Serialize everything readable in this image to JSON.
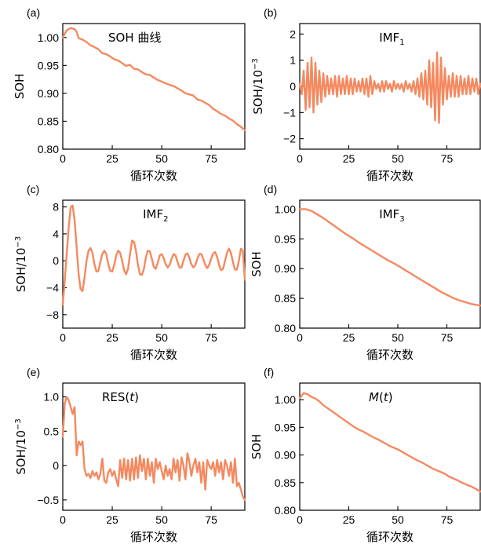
{
  "figure": {
    "line_color": "#F4895F",
    "x_axis_common_label": "循环次数"
  },
  "chart_data": [
    {
      "id": "a",
      "panel_label": "(a)",
      "type": "line",
      "annotation": "SOH 曲线",
      "annotation_italic_t": false,
      "ylabel": "SOH",
      "ylabel_sup": "",
      "xlabel": "循环次数",
      "xlim": [
        0,
        92
      ],
      "ylim": [
        0.8,
        1.025
      ],
      "xticks": [
        0,
        25,
        50,
        75
      ],
      "xtick_labels": [
        "0",
        "25",
        "50",
        "75"
      ],
      "yticks": [
        0.8,
        0.85,
        0.9,
        0.95,
        1.0
      ],
      "ytick_labels": [
        "0.80",
        "0.85",
        "0.90",
        "0.95",
        "1.00"
      ],
      "series": [
        {
          "x": [
            0,
            2,
            4,
            6,
            7,
            8,
            10,
            12,
            14,
            16,
            18,
            20,
            22,
            24,
            26,
            28,
            30,
            32,
            34,
            36,
            38,
            40,
            42,
            44,
            46,
            48,
            50,
            52,
            54,
            56,
            58,
            60,
            62,
            64,
            66,
            68,
            70,
            72,
            74,
            76,
            78,
            80,
            82,
            84,
            86,
            88,
            90,
            92
          ],
          "y": [
            1.0,
            1.013,
            1.017,
            1.015,
            1.01,
            0.999,
            0.996,
            0.992,
            0.986,
            0.983,
            0.979,
            0.972,
            0.97,
            0.966,
            0.961,
            0.959,
            0.954,
            0.949,
            0.951,
            0.944,
            0.943,
            0.938,
            0.934,
            0.933,
            0.928,
            0.924,
            0.921,
            0.918,
            0.915,
            0.913,
            0.909,
            0.905,
            0.9,
            0.898,
            0.896,
            0.889,
            0.887,
            0.883,
            0.879,
            0.872,
            0.868,
            0.863,
            0.86,
            0.855,
            0.851,
            0.845,
            0.84,
            0.834
          ]
        }
      ]
    },
    {
      "id": "b",
      "panel_label": "(b)",
      "type": "line",
      "annotation": "IMF",
      "annotation_sub": "1",
      "annotation_italic_t": false,
      "ylabel": "SOH/10",
      "ylabel_sup": "−3",
      "xlabel": "循环次数",
      "xlim": [
        0,
        92
      ],
      "ylim": [
        -2.4,
        2.4
      ],
      "xticks": [
        0,
        25,
        50,
        75
      ],
      "xtick_labels": [
        "0",
        "25",
        "50",
        "75"
      ],
      "yticks": [
        -2,
        -1,
        0,
        1,
        2
      ],
      "ytick_labels": [
        "−2",
        "−1",
        "0",
        "1",
        "2"
      ],
      "series": [
        {
          "x": [
            0,
            1,
            2,
            3,
            4,
            5,
            6,
            7,
            8,
            9,
            10,
            11,
            12,
            13,
            14,
            15,
            16,
            17,
            18,
            19,
            20,
            21,
            22,
            23,
            24,
            25,
            26,
            27,
            28,
            29,
            30,
            31,
            32,
            33,
            34,
            35,
            36,
            37,
            38,
            39,
            40,
            41,
            42,
            43,
            44,
            45,
            46,
            47,
            48,
            49,
            50,
            51,
            52,
            53,
            54,
            55,
            56,
            57,
            58,
            59,
            60,
            61,
            62,
            63,
            64,
            65,
            66,
            67,
            68,
            69,
            70,
            71,
            72,
            73,
            74,
            75,
            76,
            77,
            78,
            79,
            80,
            81,
            82,
            83,
            84,
            85,
            86,
            87,
            88,
            89,
            90,
            91,
            92
          ],
          "y": [
            0.1,
            -0.3,
            0.6,
            -0.9,
            0.9,
            -0.8,
            1.1,
            -1.0,
            0.9,
            -0.7,
            0.6,
            -0.6,
            0.5,
            -0.4,
            0.4,
            -0.3,
            0.3,
            -0.3,
            0.4,
            -0.4,
            0.4,
            -0.3,
            0.3,
            -0.3,
            0.4,
            -0.3,
            0.3,
            -0.3,
            0.3,
            -0.2,
            0.2,
            -0.2,
            0.3,
            -0.3,
            0.3,
            -0.4,
            0.4,
            -0.3,
            0.2,
            -0.1,
            0.1,
            -0.2,
            0.2,
            -0.2,
            0.2,
            -0.1,
            0.1,
            -0.2,
            0.2,
            -0.1,
            0.1,
            -0.1,
            0.1,
            -0.2,
            0.2,
            -0.1,
            0.1,
            -0.2,
            0.2,
            -0.3,
            0.3,
            -0.4,
            0.5,
            -0.5,
            0.6,
            -0.7,
            1.0,
            -0.8,
            0.9,
            -1.3,
            1.3,
            -1.4,
            1.1,
            -0.7,
            0.7,
            -0.5,
            0.4,
            -0.4,
            0.5,
            -0.4,
            0.4,
            -0.4,
            0.4,
            -0.3,
            0.3,
            -0.3,
            0.4,
            -0.3,
            0.3,
            -0.2,
            0.3,
            -0.3,
            0.1
          ]
        }
      ]
    },
    {
      "id": "c",
      "panel_label": "(c)",
      "type": "line",
      "annotation": "IMF",
      "annotation_sub": "2",
      "annotation_italic_t": false,
      "ylabel": "SOH/10",
      "ylabel_sup": "−3",
      "xlabel": "循环次数",
      "xlim": [
        0,
        92
      ],
      "ylim": [
        -10,
        9
      ],
      "xticks": [
        0,
        25,
        50,
        75
      ],
      "xtick_labels": [
        "0",
        "25",
        "50",
        "75"
      ],
      "yticks": [
        -8,
        -4,
        0,
        4,
        8
      ],
      "ytick_labels": [
        "−8",
        "−4",
        "0",
        "4",
        "8"
      ],
      "series": [
        {
          "x": [
            0,
            1,
            2,
            3,
            4,
            5,
            6,
            7,
            8,
            9,
            10,
            11,
            12,
            13,
            14,
            15,
            16,
            17,
            18,
            19,
            20,
            21,
            22,
            23,
            24,
            25,
            26,
            27,
            28,
            29,
            30,
            31,
            32,
            33,
            34,
            35,
            36,
            37,
            38,
            39,
            40,
            41,
            42,
            43,
            44,
            45,
            46,
            47,
            48,
            49,
            50,
            51,
            52,
            53,
            54,
            55,
            56,
            57,
            58,
            59,
            60,
            61,
            62,
            63,
            64,
            65,
            66,
            67,
            68,
            69,
            70,
            71,
            72,
            73,
            74,
            75,
            76,
            77,
            78,
            79,
            80,
            81,
            82,
            83,
            84,
            85,
            86,
            87,
            88,
            89,
            90,
            91,
            92
          ],
          "y": [
            -6.5,
            -3,
            1,
            5,
            8,
            8.2,
            6,
            2,
            -2,
            -4.2,
            -4.5,
            -2.5,
            0,
            1.5,
            1.9,
            1.2,
            -0.5,
            -1.6,
            -1.5,
            -0.2,
            1,
            1.5,
            1,
            -0.5,
            -1.5,
            -1.6,
            -0.6,
            0.8,
            1.5,
            1.2,
            0,
            -1.4,
            -2,
            -1.2,
            1,
            3,
            2.8,
            1.5,
            -0.6,
            -2.0,
            -2.1,
            -1.2,
            0.5,
            1.5,
            1.4,
            0.3,
            -0.9,
            -1.2,
            -0.3,
            0.8,
            1,
            0.4,
            -0.5,
            -1,
            -0.6,
            0.3,
            1,
            0.8,
            -0.2,
            -1,
            -1,
            0,
            0.9,
            1.1,
            0.4,
            -0.5,
            -1,
            -0.6,
            0.3,
            1,
            1,
            0.3,
            -0.6,
            -1.1,
            -0.6,
            0.3,
            1.1,
            1.3,
            0.6,
            -0.6,
            -1.4,
            -1.2,
            0,
            1.2,
            1.8,
            1.2,
            -0.2,
            -1.3,
            -1.3,
            0,
            1.8,
            1.5,
            -2.8
          ]
        }
      ]
    },
    {
      "id": "d",
      "panel_label": "(d)",
      "type": "line",
      "annotation": "IMF",
      "annotation_sub": "3",
      "annotation_italic_t": false,
      "ylabel": "SOH",
      "ylabel_sup": "",
      "xlabel": "循环次数",
      "xlim": [
        0,
        92
      ],
      "ylim": [
        0.8,
        1.015
      ],
      "xticks": [
        0,
        25,
        50,
        75
      ],
      "xtick_labels": [
        "0",
        "25",
        "50",
        "75"
      ],
      "yticks": [
        0.8,
        0.85,
        0.9,
        0.95,
        1.0
      ],
      "ytick_labels": [
        "0.80",
        "0.85",
        "0.90",
        "0.95",
        "1.00"
      ],
      "series": [
        {
          "x": [
            0,
            3,
            6,
            9,
            12,
            15,
            18,
            21,
            24,
            27,
            30,
            33,
            36,
            39,
            42,
            45,
            48,
            51,
            54,
            57,
            60,
            63,
            66,
            69,
            72,
            75,
            78,
            81,
            84,
            87,
            90,
            92
          ],
          "y": [
            1.0,
            1.0,
            0.997,
            0.991,
            0.985,
            0.978,
            0.971,
            0.964,
            0.957,
            0.951,
            0.944,
            0.938,
            0.932,
            0.926,
            0.92,
            0.914,
            0.909,
            0.903,
            0.897,
            0.891,
            0.885,
            0.879,
            0.873,
            0.867,
            0.861,
            0.856,
            0.851,
            0.847,
            0.844,
            0.841,
            0.839,
            0.838
          ]
        }
      ]
    },
    {
      "id": "e",
      "panel_label": "(e)",
      "type": "line",
      "annotation": "RES(",
      "annotation_t": "t",
      "annotation_close": ")",
      "annotation_italic_t": true,
      "ylabel": "SOH/10",
      "ylabel_sup": "−3",
      "xlabel": "循环次数",
      "xlim": [
        0,
        92
      ],
      "ylim": [
        -0.65,
        1.2
      ],
      "xticks": [
        0,
        25,
        50,
        75
      ],
      "xtick_labels": [
        "0",
        "25",
        "50",
        "75"
      ],
      "yticks": [
        -0.5,
        0,
        0.5,
        1.0
      ],
      "ytick_labels": [
        "−0.5",
        "0",
        "0.5",
        "1.0"
      ],
      "series": [
        {
          "x": [
            0,
            1,
            2,
            3,
            4,
            5,
            6,
            7,
            8,
            9,
            10,
            11,
            12,
            13,
            14,
            15,
            16,
            17,
            18,
            19,
            20,
            21,
            22,
            23,
            24,
            25,
            26,
            27,
            28,
            29,
            30,
            31,
            32,
            33,
            34,
            35,
            36,
            37,
            38,
            39,
            40,
            41,
            42,
            43,
            44,
            45,
            46,
            47,
            48,
            49,
            50,
            51,
            52,
            53,
            54,
            55,
            56,
            57,
            58,
            59,
            60,
            61,
            62,
            63,
            64,
            65,
            66,
            67,
            68,
            69,
            70,
            71,
            72,
            73,
            74,
            75,
            76,
            77,
            78,
            79,
            80,
            81,
            82,
            83,
            84,
            85,
            86,
            87,
            88,
            89,
            90,
            91,
            92
          ],
          "y": [
            0.42,
            0.9,
            1.0,
            0.95,
            0.85,
            0.75,
            0.85,
            0.15,
            0.35,
            0.3,
            0.35,
            -0.05,
            -0.15,
            -0.12,
            -0.18,
            -0.08,
            -0.15,
            -0.1,
            -0.2,
            -0.12,
            0.1,
            -0.22,
            -0.25,
            -0.1,
            -0.05,
            -0.15,
            -0.08,
            -0.2,
            -0.3,
            0.08,
            -0.18,
            0.1,
            -0.2,
            0.08,
            -0.22,
            0.1,
            -0.2,
            0.12,
            -0.18,
            0.15,
            -0.08,
            0.1,
            -0.2,
            0.1,
            -0.15,
            0.05,
            -0.25,
            0.1,
            -0.05,
            0.05,
            -0.08,
            -0.2,
            0.0,
            -0.15,
            -0.05,
            -0.2,
            0.1,
            -0.1,
            0.08,
            -0.22,
            0.12,
            0.0,
            -0.2,
            0.18,
            0.05,
            -0.15,
            0.0,
            0.1,
            -0.1,
            0.05,
            -0.25,
            0.05,
            -0.35,
            0.08,
            0.0,
            -0.05,
            0.05,
            -0.15,
            0.08,
            -0.1,
            0.05,
            -0.2,
            0.08,
            0.0,
            -0.15,
            0.05,
            -0.25,
            0.1,
            -0.3,
            -0.25,
            -0.35,
            -0.45,
            -0.5
          ]
        }
      ]
    },
    {
      "id": "f",
      "panel_label": "(f)",
      "type": "line",
      "annotation": "M",
      "annotation_t": "t",
      "annotation_close": ")",
      "annotation_italic_t": true,
      "ylabel": "SOH",
      "ylabel_sup": "",
      "xlabel": "循环次数",
      "xlim": [
        0,
        92
      ],
      "ylim": [
        0.8,
        1.03
      ],
      "xticks": [
        0,
        25,
        50,
        75
      ],
      "xtick_labels": [
        "0",
        "25",
        "50",
        "75"
      ],
      "yticks": [
        0.8,
        0.85,
        0.9,
        0.95,
        1.0
      ],
      "ytick_labels": [
        "0.80",
        "0.85",
        "0.90",
        "0.95",
        "1.00"
      ],
      "series": [
        {
          "x": [
            0,
            2,
            4,
            6,
            8,
            10,
            12,
            14,
            16,
            18,
            20,
            22,
            24,
            26,
            28,
            30,
            32,
            34,
            36,
            38,
            40,
            42,
            44,
            46,
            48,
            50,
            52,
            54,
            56,
            58,
            60,
            62,
            64,
            66,
            68,
            70,
            72,
            74,
            76,
            78,
            80,
            82,
            84,
            86,
            88,
            90,
            92
          ],
          "y": [
            1.003,
            1.012,
            1.01,
            1.005,
            1.002,
            0.997,
            0.99,
            0.985,
            0.98,
            0.975,
            0.97,
            0.965,
            0.96,
            0.955,
            0.95,
            0.946,
            0.943,
            0.939,
            0.935,
            0.931,
            0.928,
            0.924,
            0.92,
            0.916,
            0.913,
            0.91,
            0.906,
            0.902,
            0.898,
            0.894,
            0.89,
            0.887,
            0.883,
            0.879,
            0.875,
            0.872,
            0.869,
            0.866,
            0.861,
            0.858,
            0.855,
            0.851,
            0.848,
            0.845,
            0.842,
            0.838,
            0.834
          ]
        }
      ]
    }
  ]
}
